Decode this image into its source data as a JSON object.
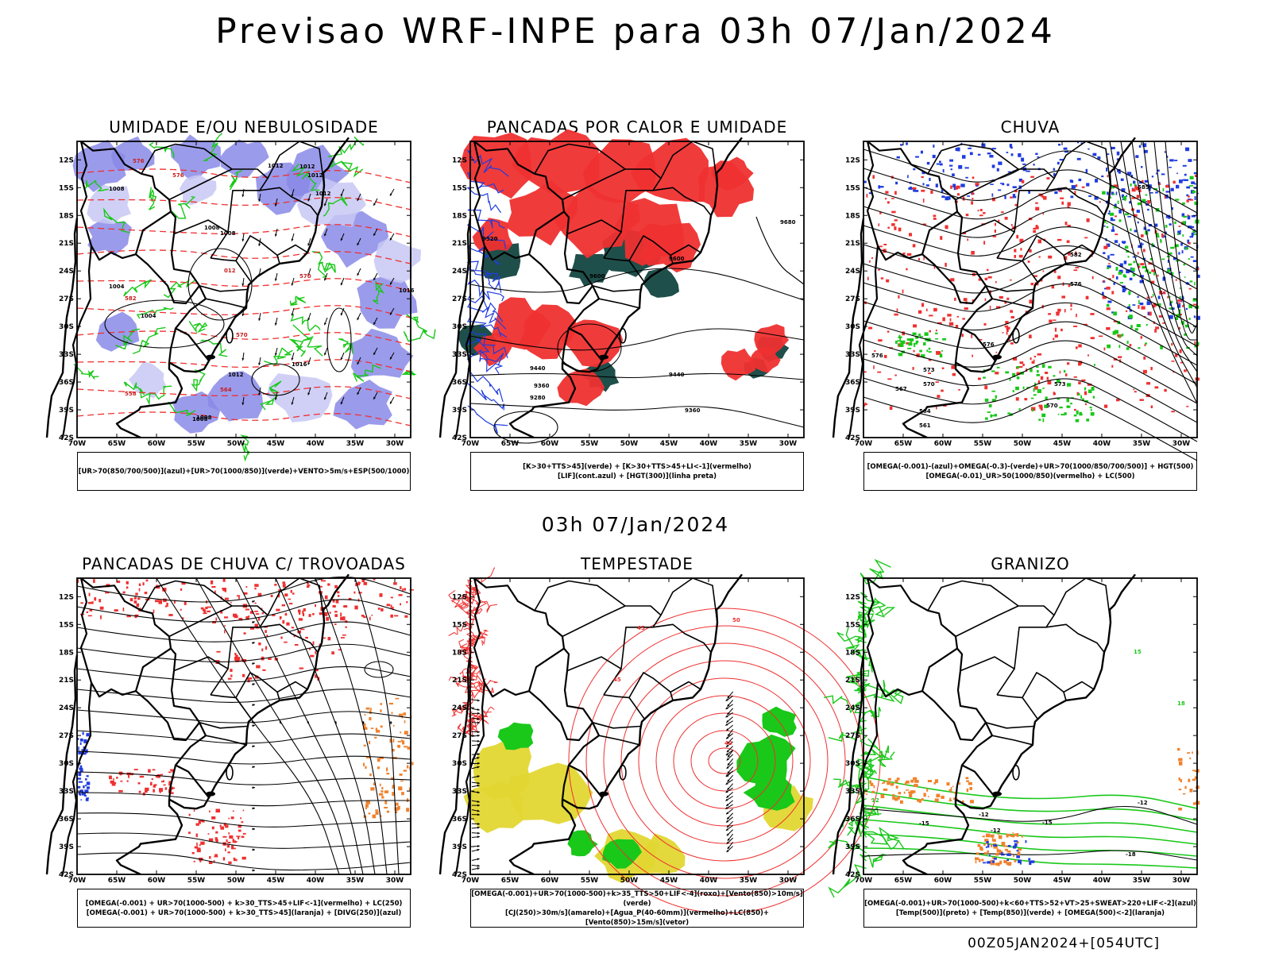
{
  "page": {
    "title": "Previsao WRF-INPE  para 03h 07/Jan/2024",
    "subtitle": "03h 07/Jan/2024",
    "run_label": "00Z05JAN2024+[054UTC]"
  },
  "axes": {
    "lat_labels": [
      "12S",
      "15S",
      "18S",
      "21S",
      "24S",
      "27S",
      "30S",
      "33S",
      "36S",
      "39S",
      "42S"
    ],
    "lon_labels": [
      "70W",
      "65W",
      "60W",
      "55W",
      "50W",
      "45W",
      "40W",
      "35W",
      "30W"
    ],
    "lat_range_deg": [
      -42,
      -10
    ],
    "lon_range_deg": [
      -70,
      -28
    ]
  },
  "colors": {
    "blue_shade": "#8a8ae8",
    "blue_light": "#c8c8f4",
    "green": "#19c819",
    "red": "#ef3030",
    "dark_teal": "#1f4f4a",
    "yellow": "#e1d731",
    "orange": "#f0822d",
    "blue": "#1f3cdf"
  },
  "panels": [
    {
      "title": "UMIDADE E/OU NEBULOSIDADE",
      "legend": [
        "[UR>70(850/700/500)](azul)+[UR>70(1000/850)](verde)+VENTO>5m/s+ESP(500/1000)"
      ],
      "contour_labels": [
        "1012",
        "1012",
        "1012",
        "1012",
        "1008",
        "1008",
        "1008",
        "1004",
        "1004",
        "1016",
        "1012",
        "1016",
        "1008",
        "1008",
        "576",
        "576",
        "570",
        "570",
        "564",
        "558",
        "582",
        "012"
      ]
    },
    {
      "title": "PANCADAS POR CALOR E UMIDADE",
      "legend": [
        "[K>30+TTS>45](verde) + [K>30+TTS>45+LI<-1](vermelho)",
        "[LIF](cont.azul) + [HGT(300)](linha preta)"
      ],
      "contour_labels": [
        "9680",
        "9600",
        "9600",
        "9520",
        "9440",
        "9440",
        "9360",
        "9360",
        "9280"
      ]
    },
    {
      "title": "CHUVA",
      "legend": [
        "[OMEGA(-0.001)-(azul)+OMEGA(-0.3)-(verde)+UR>70(1000/850/700/500)] + HGT(500)",
        "[OMEGA(-0.01)_UR>50(1000/850)(vermelho) + LC(500)"
      ],
      "contour_labels": [
        "585",
        "576",
        "576",
        "576",
        "573",
        "570",
        "570",
        "567",
        "564",
        "561",
        "582",
        "573"
      ]
    },
    {
      "title": "PANCADAS DE CHUVA C/ TROVOADAS",
      "legend": [
        "[OMEGA(-0.001) + UR>70(1000-500) + k>30_TTS>45+LIF<-1](vermelho) + LC(250)",
        "[OMEGA(-0.001) + UR>70(1000-500) + k>30_TTS>45](laranja) + [DIVG(250)](azul)"
      ],
      "contour_labels": []
    },
    {
      "title": "TEMPESTADE",
      "legend": [
        "[OMEGA(-0.001)+UR>70(1000-500)+k>35_TTS>50+LIF<-4](roxo)+[Vento(850)>10m/s](verde)",
        "[CJ(250)>30m/s](amarelo)+[Agua_P(40-60mm)](vermelho)+LC(850)+[Vento(850)>15m/s](vetor)"
      ],
      "contour_labels": [
        "50",
        "45",
        "45",
        "40"
      ]
    },
    {
      "title": "GRANIZO",
      "legend": [
        "[OMEGA(-0.001)+UR>70(1000-500)+k<60+TTS>52+VT>25+SWEAT>220+LIF<-2](azul)",
        "[Temp(500)](preto) + [Temp(850)](verde) + [OMEGA(500)<-2](laranja)"
      ],
      "contour_labels": [
        "-12",
        "-12",
        "-12",
        "-15",
        "-15",
        "-18",
        "15",
        "18",
        "12"
      ]
    }
  ]
}
